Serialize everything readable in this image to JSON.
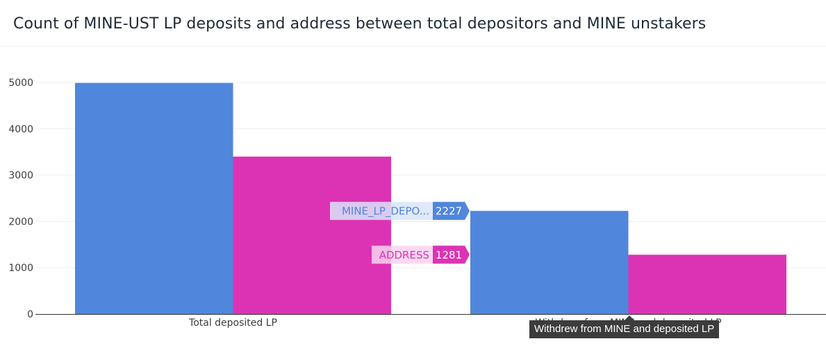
{
  "title": "Count of MINE-UST LP deposits and address between total depositors and MINE unstakers",
  "colors": {
    "series1": "#5086db",
    "series2": "#dc33b4",
    "grid": "#ebedf0",
    "axis": "#333333"
  },
  "chart_data": {
    "type": "bar",
    "title": "Count of MINE-UST LP deposits and address between total depositors and MINE unstakers",
    "categories": [
      "Total deposited LP",
      "Withdrew from MINE and deposited LP"
    ],
    "series": [
      {
        "name": "MINE_LP_DEPOSITS",
        "values": [
          4990,
          2227
        ]
      },
      {
        "name": "ADDRESS",
        "values": [
          3400,
          1281
        ]
      }
    ],
    "yticks": [
      0,
      1000,
      2000,
      3000,
      4000,
      5000
    ],
    "ylim": [
      0,
      5500
    ],
    "grid": true,
    "legend": "none"
  },
  "hover": {
    "category_label": "Withdrew from MINE and deposited LP",
    "labels": [
      {
        "name": "MINE_LP_DEPO...",
        "value": "2227"
      },
      {
        "name": "ADDRESS",
        "value": "1281"
      }
    ]
  }
}
